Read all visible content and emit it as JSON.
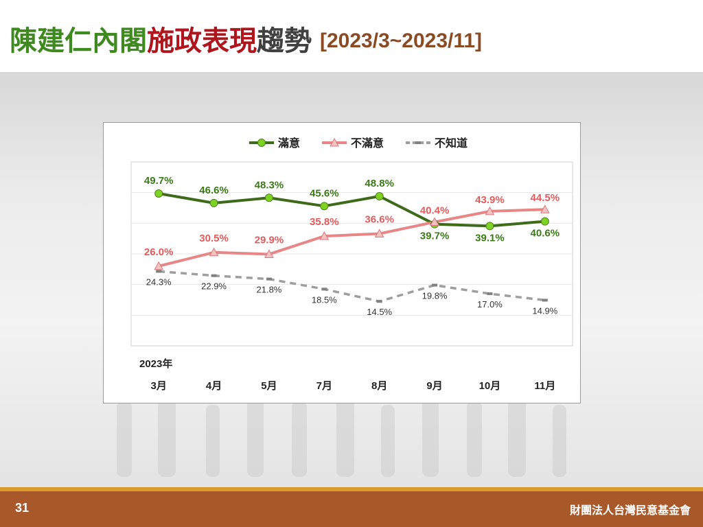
{
  "slide": {
    "title_part1": "陳建仁內閣",
    "title_part2": "施政表現",
    "title_part3": "趨勢",
    "title_range": "[2023/3~2023/11]",
    "page_number": "31",
    "organization": "財團法人台灣民意基金會"
  },
  "chart_data": {
    "type": "line",
    "title": "",
    "xlabel": "",
    "ylabel": "",
    "ylim": [
      0,
      60
    ],
    "grid": true,
    "legend_position": "top-center",
    "year_label": "2023年",
    "categories": [
      "3月",
      "4月",
      "5月",
      "7月",
      "8月",
      "9月",
      "10月",
      "11月"
    ],
    "series": [
      {
        "name": "滿意",
        "color": "#3d6b1a",
        "marker_color": "#7ed321",
        "marker": "circle",
        "style": "solid",
        "values": [
          49.7,
          46.6,
          48.3,
          45.6,
          48.8,
          39.7,
          39.1,
          40.6
        ],
        "labels": [
          "49.7%",
          "46.6%",
          "48.3%",
          "45.6%",
          "48.8%",
          "39.7%",
          "39.1%",
          "40.6%"
        ]
      },
      {
        "name": "不滿意",
        "color": "#e88585",
        "marker_color": "#f4c2c2",
        "marker": "triangle",
        "style": "solid",
        "values": [
          26.0,
          30.5,
          29.9,
          35.8,
          36.6,
          40.4,
          43.9,
          44.5
        ],
        "labels": [
          "26.0%",
          "30.5%",
          "29.9%",
          "35.8%",
          "36.6%",
          "40.4%",
          "43.9%",
          "44.5%"
        ]
      },
      {
        "name": "不知道",
        "color": "#9e9e9e",
        "marker_color": "#808080",
        "marker": "dash",
        "style": "dashed",
        "values": [
          24.3,
          22.9,
          21.8,
          18.5,
          14.5,
          19.8,
          17.0,
          14.9
        ],
        "labels": [
          "24.3%",
          "22.9%",
          "21.8%",
          "18.5%",
          "14.5%",
          "19.8%",
          "17.0%",
          "14.9%"
        ]
      }
    ]
  }
}
